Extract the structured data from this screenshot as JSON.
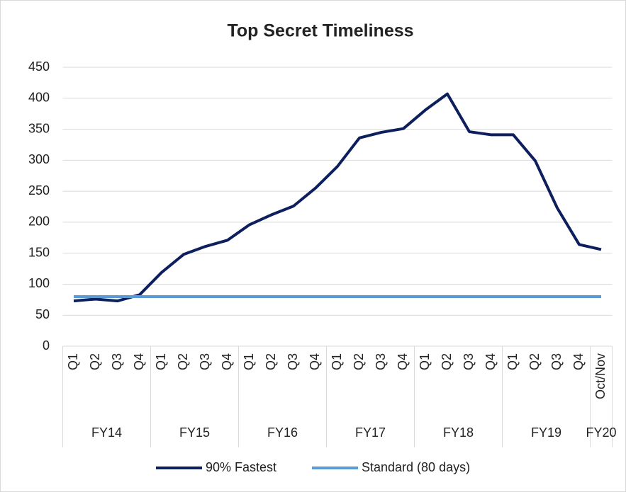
{
  "chart_data": {
    "type": "line",
    "title": "Top Secret Timeliness",
    "groups": [
      {
        "name": "FY14",
        "categories": [
          "Q1",
          "Q2",
          "Q3",
          "Q4"
        ]
      },
      {
        "name": "FY15",
        "categories": [
          "Q1",
          "Q2",
          "Q3",
          "Q4"
        ]
      },
      {
        "name": "FY16",
        "categories": [
          "Q1",
          "Q2",
          "Q3",
          "Q4"
        ]
      },
      {
        "name": "FY17",
        "categories": [
          "Q1",
          "Q2",
          "Q3",
          "Q4"
        ]
      },
      {
        "name": "FY18",
        "categories": [
          "Q1",
          "Q2",
          "Q3",
          "Q4"
        ]
      },
      {
        "name": "FY19",
        "categories": [
          "Q1",
          "Q2",
          "Q3",
          "Q4"
        ]
      },
      {
        "name": "FY20",
        "categories": [
          "Oct/Nov"
        ]
      }
    ],
    "series": [
      {
        "name": "90% Fastest",
        "color": "#0d1f5c",
        "values": [
          73,
          76,
          73,
          83,
          119,
          148,
          161,
          171,
          196,
          212,
          226,
          255,
          290,
          336,
          345,
          351,
          381,
          407,
          346,
          341,
          341,
          299,
          223,
          164,
          156
        ]
      },
      {
        "name": "Standard (80 days)",
        "color": "#5b9bd5",
        "values": [
          80,
          80,
          80,
          80,
          80,
          80,
          80,
          80,
          80,
          80,
          80,
          80,
          80,
          80,
          80,
          80,
          80,
          80,
          80,
          80,
          80,
          80,
          80,
          80,
          80
        ]
      }
    ],
    "ylim": [
      0,
      450
    ],
    "yticks": [
      0,
      50,
      100,
      150,
      200,
      250,
      300,
      350,
      400,
      450
    ],
    "grid": true,
    "legend": "bottom"
  }
}
